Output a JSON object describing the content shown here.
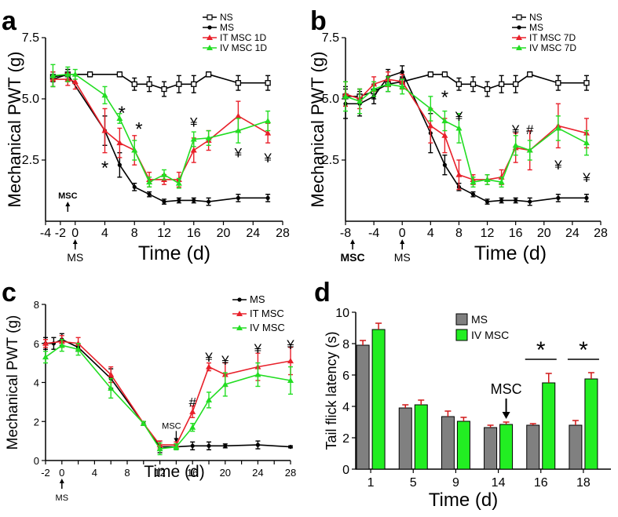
{
  "panels": {
    "a": {
      "letter": "a"
    },
    "b": {
      "letter": "b"
    },
    "c": {
      "letter": "c"
    },
    "d": {
      "letter": "d"
    }
  },
  "colors": {
    "NS": "#000000",
    "MS": "#000000",
    "IT": "#e8202a",
    "IV": "#22dd22",
    "MS_bar": "#808080",
    "MSC_bar": "#22ee22"
  },
  "chart_data": [
    {
      "id": "a",
      "type": "line",
      "ylabel": "Mechanical PWT (g)",
      "xlabel": "Time (d)",
      "xlim": [
        -4,
        28
      ],
      "ylim": [
        0,
        7.5
      ],
      "xticks": [
        -4,
        -2,
        0,
        4,
        8,
        12,
        16,
        20,
        24,
        28
      ],
      "xtick_labels": [
        "-4",
        "-2",
        "0",
        "4",
        "8",
        "12",
        "16",
        "20",
        "24",
        "28"
      ],
      "yticks": [
        2.5,
        5.0,
        7.5
      ],
      "ytick_labels": [
        "2.5",
        "5.0",
        "7.5"
      ],
      "axis_notes": [
        {
          "x": 0,
          "label": "MS",
          "side": "below"
        },
        {
          "x": -1,
          "label": "MSC",
          "side": "inside"
        }
      ],
      "legend": [
        "NS",
        "MS",
        "IT MSC 1D",
        "IV MSC 1D"
      ],
      "series": [
        {
          "name": "NS",
          "key": "NS",
          "marker": "square",
          "x": [
            -3,
            -1,
            2,
            6,
            8,
            10,
            12,
            14,
            16,
            18,
            22,
            26
          ],
          "y": [
            5.9,
            6.0,
            6.0,
            6.0,
            5.6,
            5.6,
            5.4,
            5.6,
            5.6,
            6.0,
            5.65,
            5.65
          ],
          "err": [
            0.2,
            0.2,
            0.1,
            0.1,
            0.25,
            0.3,
            0.3,
            0.35,
            0.35,
            0.1,
            0.3,
            0.3
          ]
        },
        {
          "name": "MS",
          "key": "MS",
          "marker": "circle",
          "x": [
            -3,
            -1,
            4,
            6,
            8,
            10,
            12,
            14,
            16,
            18,
            22,
            26
          ],
          "y": [
            5.8,
            6.0,
            3.7,
            2.3,
            1.4,
            1.1,
            0.8,
            0.85,
            0.85,
            0.8,
            0.95,
            0.95
          ],
          "err": [
            0.3,
            0.2,
            0.6,
            0.5,
            0.15,
            0.1,
            0.1,
            0.1,
            0.1,
            0.15,
            0.15,
            0.15
          ]
        },
        {
          "name": "IT MSC 1D",
          "key": "IT",
          "marker": "triangle",
          "x": [
            -3,
            -1,
            0,
            4,
            6,
            8,
            10,
            12,
            14,
            16,
            18,
            22,
            26
          ],
          "y": [
            5.8,
            5.8,
            5.7,
            3.7,
            3.2,
            2.9,
            1.7,
            1.7,
            1.7,
            2.9,
            3.3,
            4.3,
            3.6
          ],
          "err": [
            0.3,
            0.25,
            0.3,
            0.9,
            0.6,
            0.6,
            0.3,
            0.2,
            0.3,
            0.5,
            0.4,
            0.6,
            0.4
          ]
        },
        {
          "name": "IV MSC 1D",
          "key": "IV",
          "marker": "triangle",
          "x": [
            -3,
            -1,
            0,
            4,
            6,
            8,
            10,
            12,
            14,
            16,
            18,
            22,
            26
          ],
          "y": [
            5.95,
            6.0,
            6.0,
            5.15,
            4.2,
            2.9,
            1.6,
            1.9,
            1.55,
            3.35,
            3.4,
            3.7,
            4.1
          ],
          "err": [
            0.45,
            0.3,
            0.2,
            0.35,
            0.2,
            0.4,
            0.2,
            0.2,
            0.2,
            0.3,
            0.3,
            0.5,
            0.4
          ]
        }
      ],
      "annotations": [
        {
          "text": "*",
          "x": 4,
          "y": 2.3,
          "color": "#000"
        },
        {
          "text": "*",
          "x": 6.3,
          "y": 4.55,
          "color": "#000"
        },
        {
          "text": "*",
          "x": 8.6,
          "y": 3.9,
          "color": "#000"
        },
        {
          "text": "¥",
          "x": 16,
          "y": 4.05,
          "color": "#000"
        },
        {
          "text": "¥",
          "x": 22,
          "y": 2.8,
          "color": "#000"
        },
        {
          "text": "¥",
          "x": 26,
          "y": 2.6,
          "color": "#000"
        }
      ]
    },
    {
      "id": "b",
      "type": "line",
      "ylabel": "Mechanical PWT (g)",
      "xlabel": "Time (d)",
      "xlim": [
        -8,
        28
      ],
      "ylim": [
        0,
        7.5
      ],
      "xticks": [
        -8,
        -4,
        0,
        4,
        8,
        12,
        16,
        20,
        24,
        28
      ],
      "xtick_labels": [
        "-8",
        "-4",
        "0",
        "4",
        "8",
        "12",
        "16",
        "20",
        "24",
        "28"
      ],
      "yticks": [
        2.5,
        5.0,
        7.5
      ],
      "ytick_labels": [
        "2.5",
        "5.0",
        "7.5"
      ],
      "axis_notes": [
        {
          "x": 0,
          "label": "MS",
          "side": "below"
        },
        {
          "x": -7,
          "label": "MSC",
          "side": "below"
        }
      ],
      "legend": [
        "NS",
        "MS",
        "IT MSC 7D",
        "IV MSC 7D"
      ],
      "series": [
        {
          "name": "NS",
          "key": "NS",
          "marker": "square",
          "x": [
            -8,
            -6,
            -4,
            -2,
            0,
            4,
            6,
            8,
            10,
            12,
            14,
            16,
            18,
            22,
            26
          ],
          "y": [
            5.1,
            5.1,
            5.3,
            5.6,
            5.7,
            6.0,
            6.0,
            5.6,
            5.6,
            5.4,
            5.6,
            5.6,
            6.0,
            5.65,
            5.65
          ],
          "err": [
            0.4,
            0.3,
            0.3,
            0.3,
            0.2,
            0.1,
            0.1,
            0.25,
            0.3,
            0.3,
            0.35,
            0.35,
            0.1,
            0.3,
            0.3
          ]
        },
        {
          "name": "MS",
          "key": "MS",
          "marker": "circle",
          "x": [
            -8,
            -6,
            -4,
            -2,
            0,
            4,
            6,
            8,
            10,
            12,
            14,
            16,
            18,
            22,
            26
          ],
          "y": [
            4.8,
            4.8,
            5.1,
            5.9,
            6.1,
            3.6,
            2.3,
            1.4,
            1.1,
            0.8,
            0.85,
            0.85,
            0.8,
            0.95,
            0.95
          ],
          "err": [
            0.6,
            0.5,
            0.3,
            0.3,
            0.25,
            0.8,
            0.4,
            0.15,
            0.1,
            0.1,
            0.1,
            0.1,
            0.15,
            0.15,
            0.15
          ]
        },
        {
          "name": "IT MSC 7D",
          "key": "IT",
          "marker": "triangle",
          "x": [
            -8,
            -6,
            -4,
            -2,
            0,
            4,
            6,
            8,
            10,
            12,
            14,
            16,
            18,
            22,
            26
          ],
          "y": [
            5.2,
            5.0,
            5.6,
            5.8,
            5.7,
            3.9,
            3.5,
            1.9,
            1.7,
            1.7,
            1.8,
            3.0,
            2.9,
            3.9,
            3.6
          ],
          "err": [
            0.5,
            0.4,
            0.3,
            0.3,
            0.3,
            0.7,
            0.7,
            0.6,
            0.2,
            0.2,
            0.3,
            0.6,
            0.8,
            0.9,
            0.6
          ]
        },
        {
          "name": "IV MSC 7D",
          "key": "IV",
          "marker": "triangle",
          "x": [
            -8,
            -6,
            -4,
            -2,
            0,
            4,
            6,
            8,
            10,
            12,
            14,
            16,
            18,
            22,
            26
          ],
          "y": [
            5.1,
            4.9,
            5.4,
            5.6,
            5.5,
            4.6,
            4.1,
            3.8,
            1.6,
            1.7,
            1.6,
            3.1,
            2.9,
            3.8,
            3.2
          ],
          "err": [
            0.6,
            0.5,
            0.3,
            0.3,
            0.3,
            0.5,
            0.4,
            0.6,
            0.2,
            0.2,
            0.2,
            0.4,
            0.4,
            0.5,
            0.5
          ]
        }
      ],
      "annotations": [
        {
          "text": "*",
          "x": 6,
          "y": 5.2,
          "color": "#000"
        },
        {
          "text": "¥",
          "x": 8,
          "y": 4.3,
          "color": "#000"
        },
        {
          "text": "¥",
          "x": 16,
          "y": 3.75,
          "color": "#000"
        },
        {
          "text": "#",
          "x": 18,
          "y": 3.75,
          "color": "#000"
        },
        {
          "text": "¥",
          "x": 22,
          "y": 2.3,
          "color": "#000"
        },
        {
          "text": "¥",
          "x": 26,
          "y": 1.8,
          "color": "#000"
        }
      ]
    },
    {
      "id": "c",
      "type": "line",
      "ylabel": "Mechanical PWT (g)",
      "xlabel": "Time (d)",
      "xlim": [
        -2,
        28
      ],
      "ylim": [
        0,
        8
      ],
      "xticks": [
        -2,
        0,
        2,
        4,
        6,
        8,
        10,
        12,
        14,
        16,
        18,
        20,
        22,
        24,
        26,
        28
      ],
      "xtick_labels": [
        "-2",
        "0",
        "",
        "4",
        "",
        "8",
        "",
        "12",
        "",
        "16",
        "",
        "20",
        "",
        "24",
        "",
        "28"
      ],
      "yticks": [
        0,
        2,
        4,
        6,
        8
      ],
      "ytick_labels": [
        "0",
        "2",
        "4",
        "6",
        "8"
      ],
      "axis_notes": [
        {
          "x": 0,
          "label": "MS",
          "side": "below"
        },
        {
          "x": 14,
          "label": "MSC",
          "side": "inside"
        }
      ],
      "legend": [
        "MS",
        "IT MSC",
        "IV MSC"
      ],
      "series": [
        {
          "name": "MS",
          "key": "MS",
          "marker": "circle",
          "x": [
            -2,
            -1,
            0,
            2,
            6,
            10,
            12,
            14,
            16,
            18,
            20,
            24,
            28
          ],
          "y": [
            6.0,
            6.0,
            6.2,
            5.8,
            4.2,
            1.9,
            0.7,
            0.7,
            0.75,
            0.75,
            0.75,
            0.8,
            0.7
          ],
          "err": [
            0.3,
            0.3,
            0.3,
            0.2,
            0.5,
            0.1,
            0.3,
            0.15,
            0.2,
            0.2,
            0.1,
            0.2,
            0.05
          ]
        },
        {
          "name": "IT MSC",
          "key": "IT",
          "marker": "triangle",
          "x": [
            -2,
            0,
            2,
            6,
            10,
            12,
            14,
            16,
            18,
            20,
            24,
            28
          ],
          "y": [
            6.0,
            6.1,
            6.0,
            4.4,
            1.9,
            0.8,
            0.8,
            2.5,
            4.8,
            4.4,
            4.8,
            5.1
          ],
          "err": [
            0.2,
            0.3,
            0.3,
            0.4,
            0.1,
            0.2,
            0.15,
            0.3,
            0.2,
            0.6,
            0.7,
            0.7
          ]
        },
        {
          "name": "IV MSC",
          "key": "IV",
          "marker": "triangle",
          "x": [
            -2,
            0,
            2,
            6,
            10,
            12,
            14,
            16,
            18,
            20,
            24,
            28
          ],
          "y": [
            5.3,
            5.9,
            5.7,
            3.7,
            1.9,
            0.6,
            0.7,
            1.7,
            3.1,
            3.9,
            4.4,
            4.1
          ],
          "err": [
            0.3,
            0.3,
            0.3,
            0.5,
            0.1,
            0.3,
            0.15,
            0.2,
            0.4,
            0.6,
            0.6,
            0.7
          ]
        }
      ],
      "annotations": [
        {
          "text": "#",
          "x": 16,
          "y": 3.0,
          "color": "#000"
        },
        {
          "text": "¥",
          "x": 18,
          "y": 5.3,
          "color": "#000"
        },
        {
          "text": "¥",
          "x": 20,
          "y": 5.15,
          "color": "#000"
        },
        {
          "text": "¥",
          "x": 24,
          "y": 5.75,
          "color": "#000"
        },
        {
          "text": "¥",
          "x": 28,
          "y": 5.95,
          "color": "#000"
        }
      ]
    },
    {
      "id": "d",
      "type": "bar",
      "ylabel": "Tail flick latency (s)",
      "xlabel": "Time (d)",
      "ylim": [
        0,
        10
      ],
      "yticks": [
        0,
        2,
        4,
        6,
        8,
        10
      ],
      "ytick_labels": [
        "0",
        "2",
        "4",
        "6",
        "8",
        "10"
      ],
      "categories": [
        "1",
        "5",
        "9",
        "14",
        "16",
        "18"
      ],
      "legend": [
        "MS",
        "IV MSC"
      ],
      "series": [
        {
          "name": "MS",
          "key": "MS_bar",
          "values": [
            7.9,
            3.9,
            3.35,
            2.65,
            2.8,
            2.8
          ],
          "err": [
            0.3,
            0.2,
            0.35,
            0.15,
            0.1,
            0.3
          ]
        },
        {
          "name": "IV MSC",
          "key": "MSC_bar",
          "values": [
            8.9,
            4.1,
            3.05,
            2.85,
            5.5,
            5.75
          ],
          "err": [
            0.4,
            0.3,
            0.25,
            0.15,
            0.6,
            0.4
          ]
        }
      ],
      "annotations": [
        {
          "text": "MSC",
          "category_index": 3,
          "type": "arrow"
        },
        {
          "text": "*",
          "category_index": 4,
          "type": "significance"
        },
        {
          "text": "*",
          "category_index": 5,
          "type": "significance"
        }
      ]
    }
  ]
}
